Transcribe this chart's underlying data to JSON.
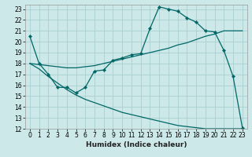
{
  "xlabel": "Humidex (Indice chaleur)",
  "bg_color": "#cce8e8",
  "grid_color": "#aacfcf",
  "line_color": "#006666",
  "xlim": [
    -0.5,
    23.5
  ],
  "ylim": [
    12,
    23.4
  ],
  "xticks": [
    0,
    1,
    2,
    3,
    4,
    5,
    6,
    7,
    8,
    9,
    10,
    11,
    12,
    13,
    14,
    15,
    16,
    17,
    18,
    19,
    20,
    21,
    22,
    23
  ],
  "yticks": [
    12,
    13,
    14,
    15,
    16,
    17,
    18,
    19,
    20,
    21,
    22,
    23
  ],
  "curve1_x": [
    0,
    1,
    2,
    3,
    4,
    5,
    6,
    7,
    8,
    9,
    10,
    11,
    12,
    13,
    14,
    15,
    16,
    17,
    18,
    19,
    20,
    21,
    22,
    23
  ],
  "curve1_y": [
    20.5,
    18.0,
    17.0,
    15.8,
    15.8,
    15.3,
    15.8,
    17.3,
    17.4,
    18.3,
    18.5,
    18.8,
    18.9,
    21.2,
    23.2,
    23.0,
    22.8,
    22.2,
    21.8,
    21.0,
    20.9,
    19.2,
    16.8,
    12.1
  ],
  "curve2_x": [
    0,
    1,
    2,
    3,
    4,
    5,
    6,
    7,
    8,
    9,
    10,
    11,
    12,
    13,
    14,
    15,
    16,
    17,
    18,
    19,
    20,
    21,
    22,
    23
  ],
  "curve2_y": [
    18.0,
    17.9,
    17.8,
    17.7,
    17.6,
    17.6,
    17.7,
    17.8,
    18.0,
    18.2,
    18.4,
    18.6,
    18.8,
    19.0,
    19.2,
    19.4,
    19.7,
    19.9,
    20.2,
    20.5,
    20.7,
    21.0,
    21.0,
    21.0
  ],
  "curve3_x": [
    0,
    1,
    2,
    3,
    4,
    5,
    6,
    7,
    8,
    9,
    10,
    11,
    12,
    13,
    14,
    15,
    16,
    17,
    18,
    19,
    20,
    21,
    22,
    23
  ],
  "curve3_y": [
    18.0,
    17.5,
    16.8,
    16.2,
    15.6,
    15.1,
    14.7,
    14.4,
    14.1,
    13.8,
    13.5,
    13.3,
    13.1,
    12.9,
    12.7,
    12.5,
    12.3,
    12.2,
    12.1,
    12.0,
    12.0,
    12.0,
    12.0,
    12.0
  ],
  "tick_fontsize": 5.5,
  "xlabel_fontsize": 6.5
}
